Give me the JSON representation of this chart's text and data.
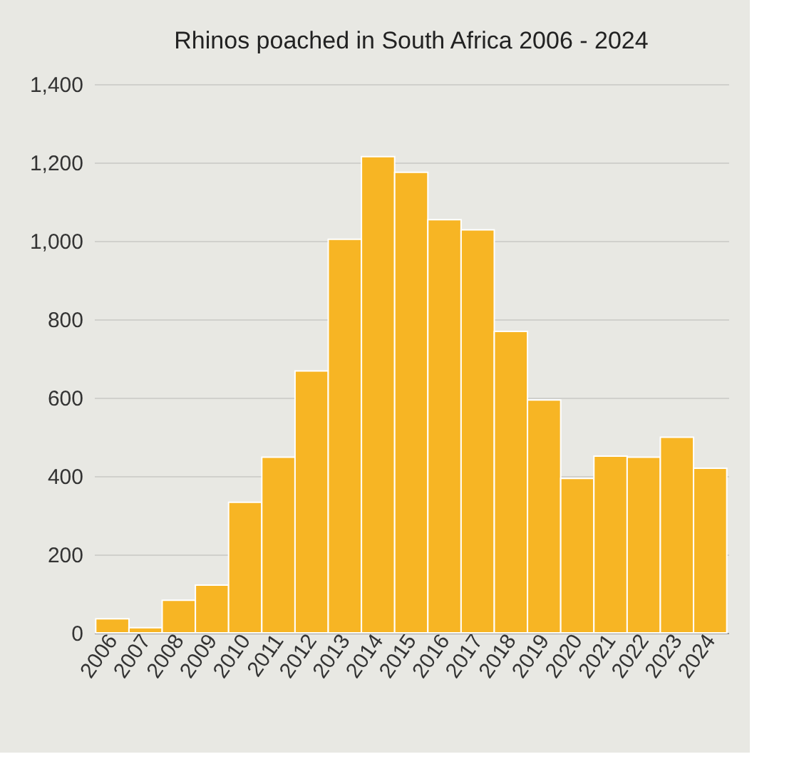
{
  "chart_data": {
    "type": "bar",
    "title": "Rhinos poached in South Africa 2006 - 2024",
    "categories": [
      "2006",
      "2007",
      "2008",
      "2009",
      "2010",
      "2011",
      "2012",
      "2013",
      "2014",
      "2015",
      "2016",
      "2017",
      "2018",
      "2019",
      "2020",
      "2021",
      "2022",
      "2023",
      "2024"
    ],
    "values": [
      36,
      13,
      83,
      122,
      333,
      448,
      668,
      1004,
      1215,
      1175,
      1054,
      1028,
      769,
      594,
      394,
      451,
      448,
      499,
      420
    ],
    "color": "#f7b524",
    "ylim": [
      0,
      1400
    ],
    "yticks": [
      0,
      200,
      400,
      600,
      800,
      {
        "value": 1000,
        "label": "1,000"
      },
      {
        "value": 1200,
        "label": "1,200"
      },
      {
        "value": 1400,
        "label": "1,400"
      }
    ],
    "grid": "y"
  }
}
